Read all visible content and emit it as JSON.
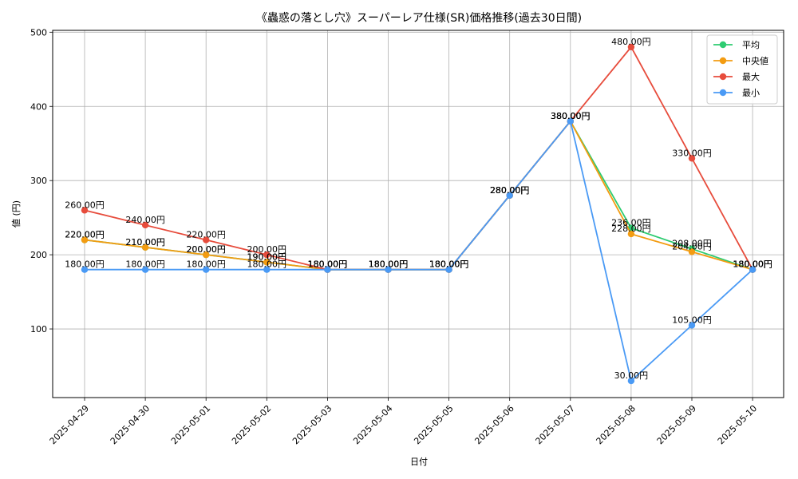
{
  "chart_data": {
    "type": "line",
    "title": "《蟲惑の落とし穴》スーパーレア仕様(SR)価格推移(過去30日間)",
    "xlabel": "日付",
    "ylabel": "値 (円)",
    "categories": [
      "2025-04-29",
      "2025-04-30",
      "2025-05-01",
      "2025-05-02",
      "2025-05-03",
      "2025-05-04",
      "2025-05-05",
      "2025-05-06",
      "2025-05-07",
      "2025-05-08",
      "2025-05-09",
      "2025-05-10"
    ],
    "ylim": [
      7.5,
      502.5
    ],
    "yticks": [
      100,
      200,
      300,
      400,
      500
    ],
    "grid": true,
    "legend_position": "top-right",
    "label_suffix": "円",
    "series": [
      {
        "name": "平均",
        "color": "#2ecc71",
        "values": [
          220,
          210,
          200,
          190,
          180,
          180,
          180,
          280,
          380,
          236,
          208,
          180
        ],
        "labels": [
          "220.00円",
          "210.00円",
          "200.00円",
          "190.00円",
          "180.00円",
          "180.00円",
          "180.00円",
          "280.00円",
          "380.00円",
          "236.00円",
          "208.00円",
          "180.00円"
        ]
      },
      {
        "name": "中央値",
        "color": "#f39c12",
        "values": [
          220,
          210,
          200,
          190,
          180,
          180,
          180,
          280,
          380,
          228,
          204,
          180
        ],
        "labels": [
          "220.00円",
          "210.00円",
          "200.00円",
          "190.00円",
          "180.00円",
          "180.00円",
          "180.00円",
          "280.00円",
          "380.00円",
          "228.00円",
          "204.00円",
          "180.00円"
        ]
      },
      {
        "name": "最大",
        "color": "#e74c3c",
        "values": [
          260,
          240,
          220,
          200,
          180,
          180,
          180,
          280,
          380,
          480,
          330,
          180
        ],
        "labels": [
          "260.00円",
          "240.00円",
          "220.00円",
          "200.00円",
          "180.00円",
          "180.00円",
          "180.00円",
          "280.00円",
          "380.00円",
          "480.00円",
          "330.00円",
          "180.00円"
        ]
      },
      {
        "name": "最小",
        "color": "#4a9af5",
        "values": [
          180,
          180,
          180,
          180,
          180,
          180,
          180,
          280,
          380,
          30,
          105,
          180
        ],
        "labels": [
          "180.00円",
          "180.00円",
          "180.00円",
          "180.00円",
          "180.00円",
          "180.00円",
          "180.00円",
          "280.00円",
          "380.00円",
          "30.00円",
          "105.00円",
          "180.00円"
        ]
      }
    ]
  }
}
